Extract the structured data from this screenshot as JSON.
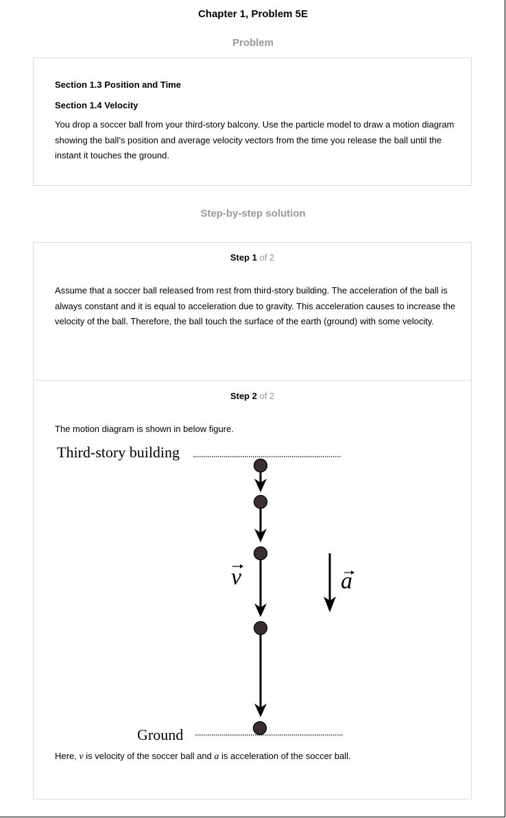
{
  "header": {
    "title": "Chapter 1, Problem 5E"
  },
  "problem": {
    "heading": "Problem",
    "section1": "Section 1.3 Position and Time",
    "section2": "Section 1.4 Velocity",
    "text": "You drop a soccer ball from your third-story balcony. Use the particle model to draw a motion diagram showing the ball’s position and average velocity vectors from the time you release the ball until the instant it touches the ground."
  },
  "solution": {
    "heading": "Step-by-step solution",
    "steps": [
      {
        "label": "Step 1",
        "of": "of 2",
        "text": "Assume that a soccer ball released from rest from third-story building. The acceleration of the ball is always constant and it is equal to acceleration due to gravity. This acceleration causes to increase the velocity of the ball. Therefore, the ball touch the surface of the earth (ground) with some velocity."
      },
      {
        "label": "Step 2",
        "of": "of 2",
        "text": "The motion diagram is shown in below figure.",
        "figure": {
          "top_label": "Third-story building",
          "bottom_label": "Ground",
          "velocity_symbol": "v",
          "acceleration_symbol": "a"
        },
        "footer": {
          "part1": "Here, ",
          "v": "v",
          "part2": " is velocity of the soccer ball and ",
          "a": "a",
          "part3": " is acceleration of the soccer ball."
        }
      }
    ]
  }
}
